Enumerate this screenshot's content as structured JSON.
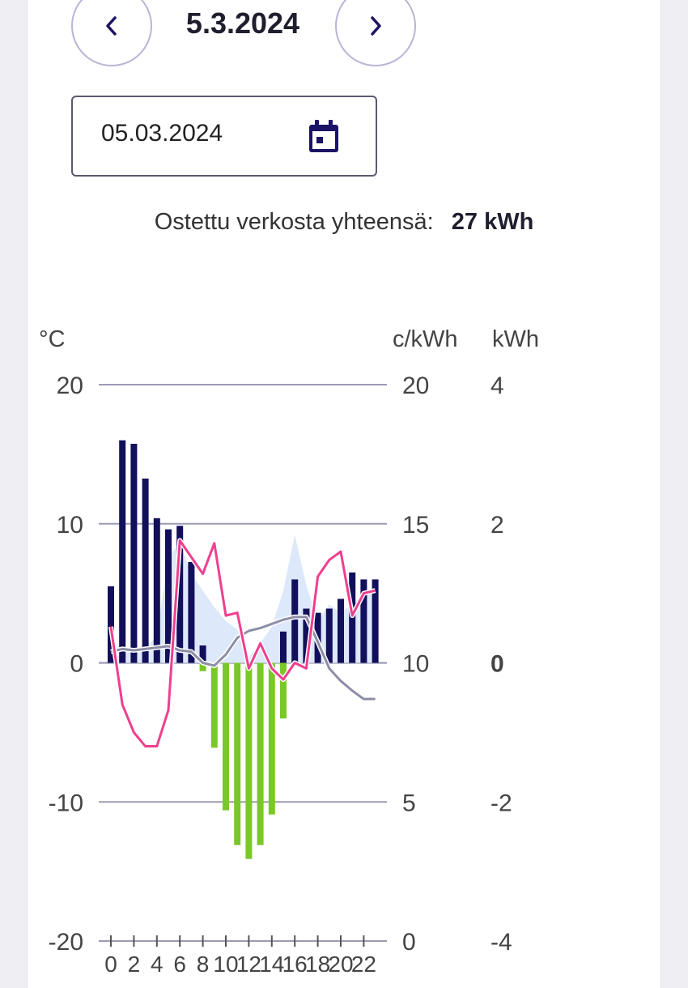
{
  "header": {
    "prev_label": "previous day",
    "date_title": "5.3.2024",
    "next_label": "next day"
  },
  "date_input": {
    "value": "05.03.2024",
    "icon": "calendar-icon"
  },
  "summary": {
    "label": "Ostettu verkosta yhteensä:",
    "value": "27 kWh"
  },
  "colors": {
    "consumption": "#120f5b",
    "production": "#7ac828",
    "price": "#ef3f8f",
    "temperature": "#8d8ea6",
    "area": "#dde8fb",
    "accent": "#1b1464",
    "grid": "#9b9bb3"
  },
  "chart_data": {
    "type": "bar",
    "axes": {
      "left": {
        "unit": "°C",
        "ylim": [
          -20,
          20
        ],
        "ticks": [
          "20",
          "10",
          "0",
          "-10",
          "-20"
        ]
      },
      "middle": {
        "unit": "c/kWh",
        "ylim": [
          0,
          20
        ],
        "ticks": [
          "20",
          "15",
          "10",
          "5",
          "0"
        ]
      },
      "right": {
        "unit": "kWh",
        "ylim": [
          -4,
          4
        ],
        "ticks": [
          "4",
          "2",
          "0",
          "-2",
          "-4"
        ]
      }
    },
    "x": {
      "hours": [
        0,
        1,
        2,
        3,
        4,
        5,
        6,
        7,
        8,
        9,
        10,
        11,
        12,
        13,
        14,
        15,
        16,
        17,
        18,
        19,
        20,
        21,
        22,
        23
      ],
      "tick_labels": [
        "0",
        "2",
        "4",
        "6",
        "8",
        "10",
        "12",
        "14",
        "16",
        "18",
        "20",
        "22"
      ]
    },
    "grid": true,
    "series": [
      {
        "name": "Ostettu verkosta",
        "unit": "kWh",
        "values": [
          1.1,
          3.2,
          3.15,
          2.65,
          2.08,
          1.92,
          1.97,
          1.45,
          0.25,
          null,
          null,
          null,
          null,
          null,
          null,
          0.45,
          1.2,
          0.78,
          0.72,
          0.78,
          0.92,
          1.3,
          1.2,
          1.2
        ]
      },
      {
        "unit": "kWh",
        "values": [
          null,
          null,
          null,
          null,
          null,
          null,
          null,
          null,
          -0.12,
          -1.22,
          -2.12,
          -2.62,
          -2.82,
          -2.62,
          -2.18,
          -0.8,
          null,
          null,
          null,
          null,
          null,
          null,
          null,
          null
        ]
      },
      {
        "unit": "c/kWh",
        "values": [
          11.3,
          8.5,
          7.5,
          7.0,
          7.0,
          8.3,
          14.4,
          13.8,
          13.2,
          14.3,
          11.7,
          11.8,
          9.8,
          10.7,
          9.8,
          9.4,
          10.0,
          9.8,
          13.1,
          13.7,
          14.0,
          11.7,
          12.5,
          12.6
        ]
      },
      {
        "unit": "°C",
        "values": [
          0.8,
          1.0,
          0.9,
          1.0,
          1.1,
          1.2,
          0.9,
          0.8,
          0.0,
          -0.2,
          0.6,
          1.8,
          2.3,
          2.5,
          2.8,
          3.1,
          3.3,
          3.3,
          1.5,
          -0.4,
          -1.3,
          -2.0,
          -2.6,
          -2.6
        ]
      },
      {
        "unit": "c/kWh",
        "values": [
          10.2,
          10.3,
          10.5,
          10.5,
          11.0,
          13.8,
          14.3,
          13.2,
          12.6,
          12.0,
          11.5,
          11.2,
          10.2,
          10.7,
          11.3,
          12.6,
          14.6,
          12.8,
          11.5,
          12.1,
          11.8,
          12.1,
          12.4,
          12.6
        ]
      }
    ]
  }
}
